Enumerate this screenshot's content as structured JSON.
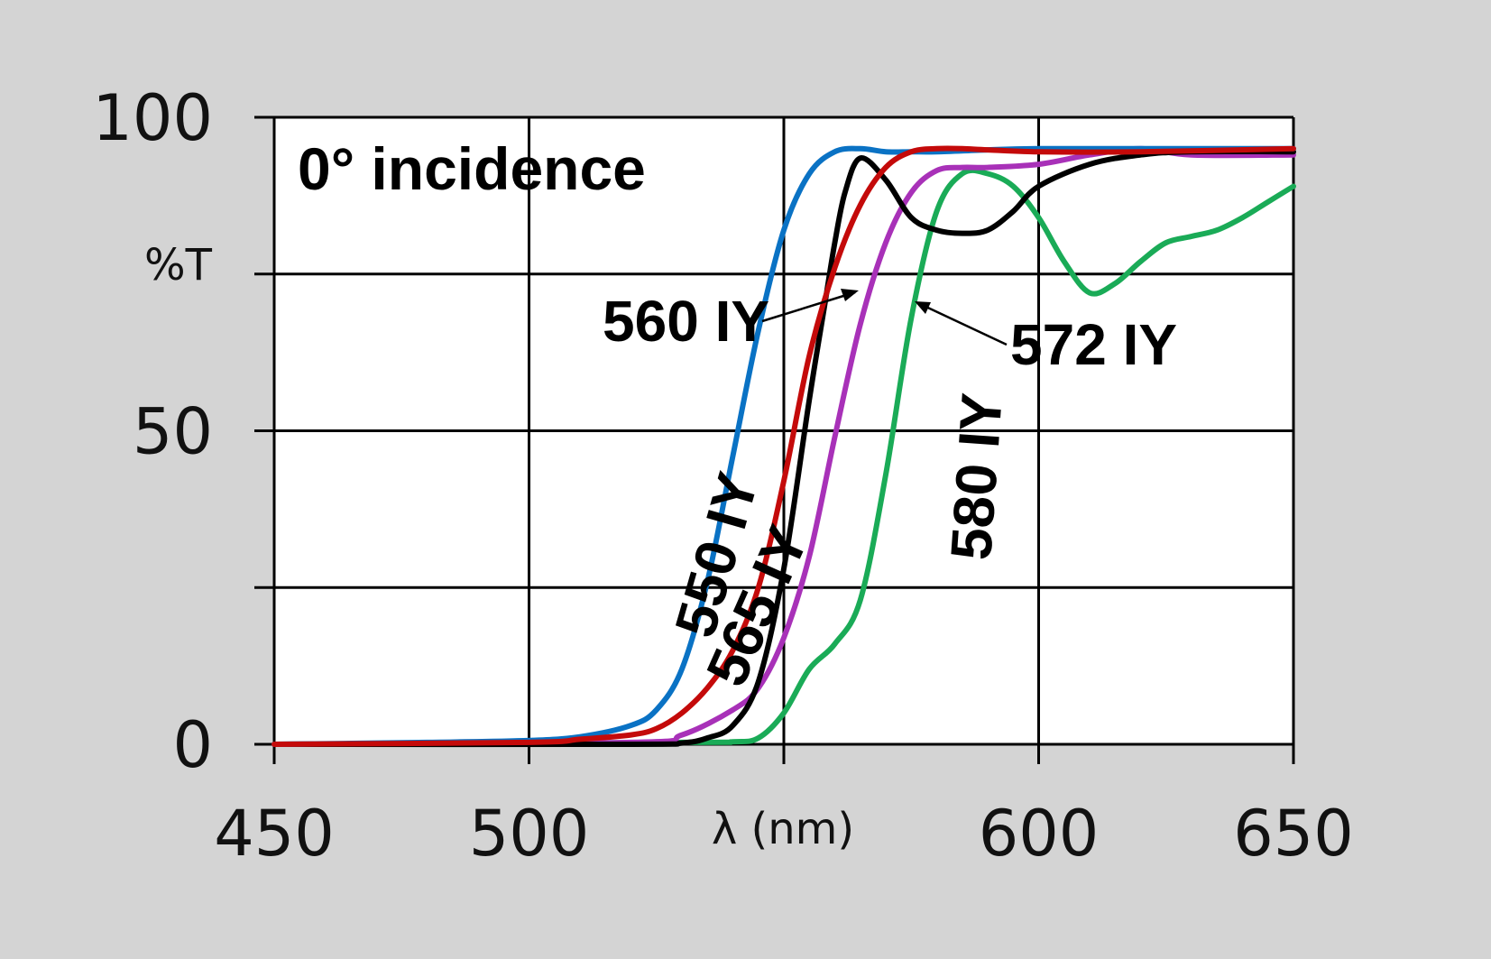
{
  "chart_data": {
    "type": "line",
    "title": "0° incidence",
    "xlabel": "λ (nm)",
    "ylabel": "%T",
    "xlim": [
      450,
      650
    ],
    "ylim": [
      0,
      100
    ],
    "x_ticks": [
      450,
      500,
      600,
      650
    ],
    "y_ticks": [
      0,
      50,
      100
    ],
    "grid": true,
    "colors": {
      "background": "#d4d4d4",
      "plot_area": "#ffffff",
      "grid": "#000000"
    },
    "series": [
      {
        "name": "550 IY",
        "color": "#0a72c4",
        "x": [
          450,
          480,
          500,
          510,
          520,
          525,
          530,
          535,
          540,
          545,
          550,
          555,
          560,
          565,
          570,
          575,
          580,
          590,
          600,
          620,
          650
        ],
        "y": [
          0,
          0.3,
          0.6,
          1.2,
          3,
          5.5,
          12,
          26,
          46,
          66,
          82,
          91,
          94.5,
          95,
          94.5,
          94.5,
          94.5,
          94.8,
          95,
          95,
          95
        ]
      },
      {
        "name": "560 IY",
        "color": "#000000",
        "x": [
          450,
          520,
          530,
          535,
          540,
          545,
          550,
          555,
          558,
          560,
          562,
          565,
          570,
          575,
          580,
          585,
          590,
          595,
          600,
          610,
          620,
          630,
          650
        ],
        "y": [
          0,
          0,
          0.2,
          1,
          3,
          10,
          28,
          55,
          70,
          80,
          88,
          93.5,
          90,
          84,
          82,
          81.5,
          82,
          85,
          89,
          92.5,
          94,
          94.5,
          94.5
        ]
      },
      {
        "name": "565 IY",
        "color": "#c40a0a",
        "x": [
          450,
          500,
          510,
          520,
          525,
          530,
          535,
          540,
          545,
          550,
          555,
          560,
          565,
          570,
          575,
          580,
          585,
          590,
          600,
          620,
          650
        ],
        "y": [
          0,
          0.3,
          0.8,
          1.5,
          2.5,
          5,
          9,
          15,
          25,
          42,
          62,
          76,
          86,
          92,
          94.5,
          95,
          95,
          94.8,
          94.5,
          94.5,
          95
        ]
      },
      {
        "name": "572 IY",
        "color": "#a831b8",
        "x": [
          450,
          520,
          530,
          540,
          545,
          550,
          555,
          560,
          565,
          570,
          575,
          580,
          585,
          590,
          600,
          610,
          620,
          630,
          650
        ],
        "y": [
          0,
          0.3,
          1.5,
          5.5,
          9,
          17,
          30,
          49,
          67,
          80,
          88,
          91.5,
          92,
          92,
          92.5,
          94,
          95,
          94,
          94
        ]
      },
      {
        "name": "580 IY",
        "color": "#1aab57",
        "x": [
          450,
          530,
          540,
          545,
          550,
          555,
          560,
          565,
          570,
          575,
          580,
          585,
          590,
          595,
          600,
          605,
          610,
          615,
          620,
          625,
          630,
          635,
          640,
          645,
          650
        ],
        "y": [
          0,
          0.3,
          0.4,
          1,
          5,
          12,
          16,
          23,
          43,
          68,
          85,
          91,
          91,
          89,
          84,
          77,
          72,
          73.5,
          77,
          80,
          81,
          82,
          84,
          86.5,
          89
        ]
      }
    ],
    "annotations": [
      "0° incidence",
      "560 IY",
      "572 IY",
      "550 IY",
      "565 IY",
      "580 IY"
    ]
  }
}
